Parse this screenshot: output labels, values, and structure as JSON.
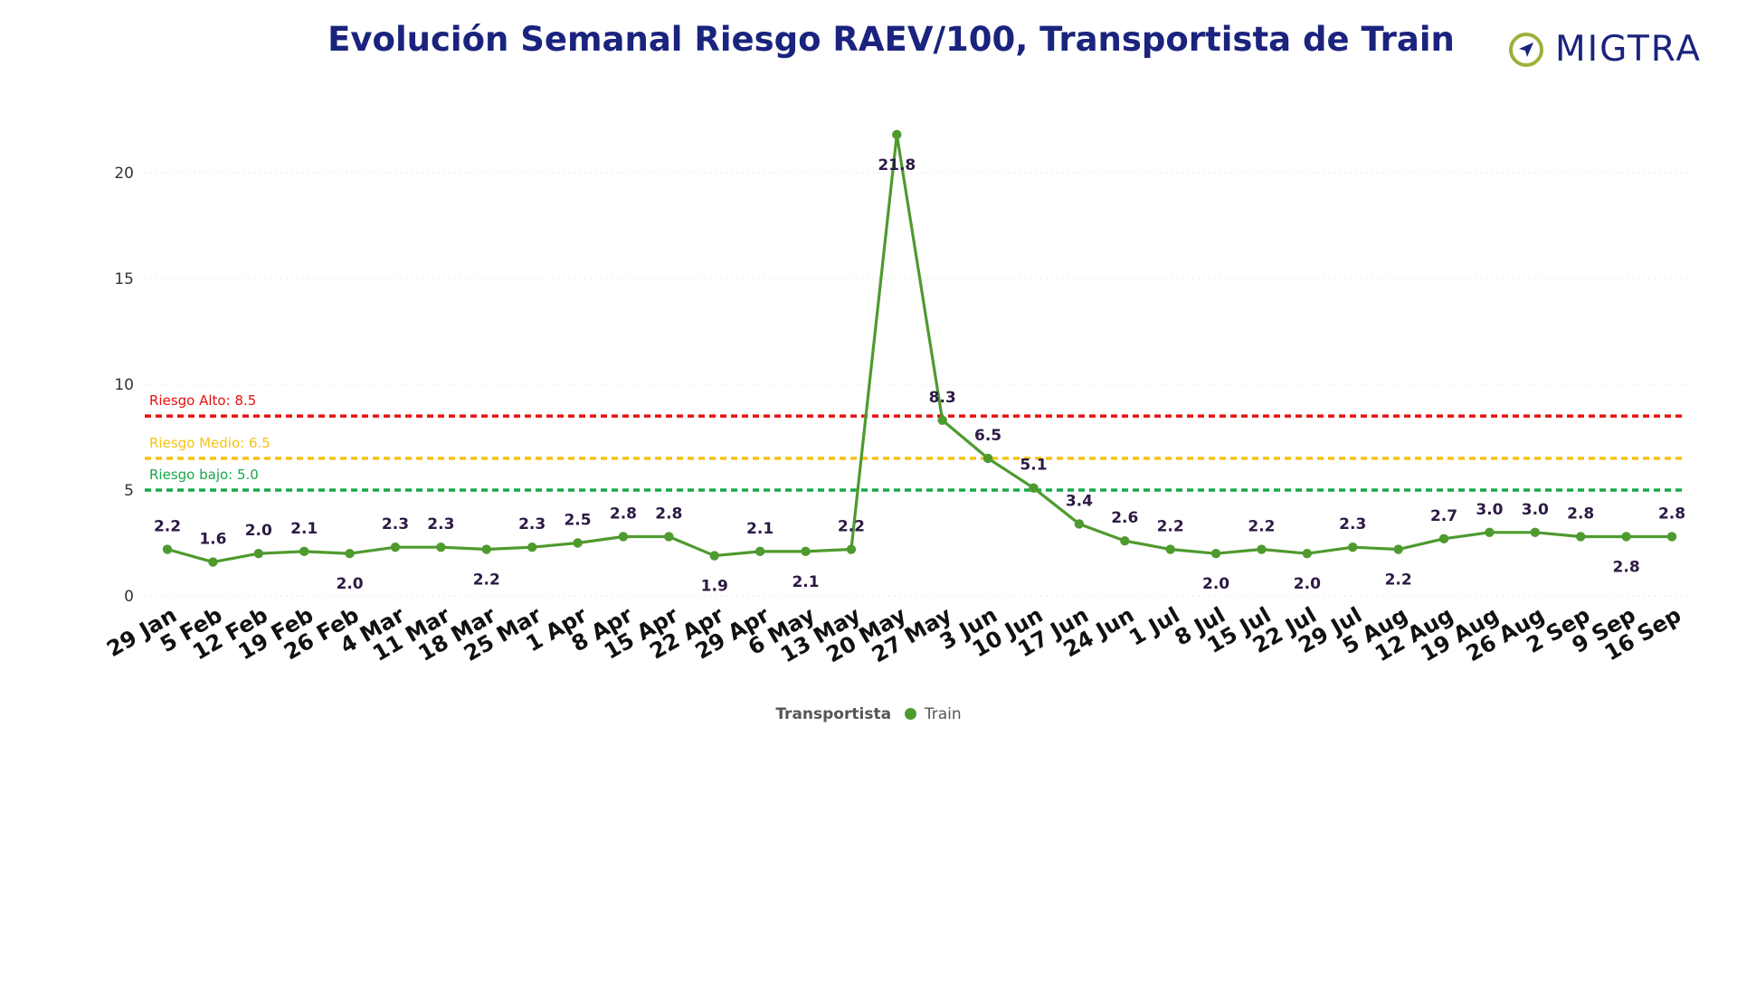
{
  "title": "Evolución Semanal Riesgo RAEV/100, Transportista de Train",
  "logo": {
    "text": "MIGTRA",
    "icon": "compass-circle-icon"
  },
  "legend": {
    "title": "Transportista",
    "series_name": "Train"
  },
  "colors": {
    "title": "#1a237e",
    "series": "#4e9a2f",
    "data_labels": "#2d1a45",
    "alto": "#e8100f",
    "medio": "#f5c211",
    "bajo": "#17a849"
  },
  "chart_data": {
    "type": "line",
    "title": "Evolución Semanal Riesgo RAEV/100, Transportista de Train",
    "xlabel": "",
    "ylabel": "",
    "ylim": [
      0,
      22
    ],
    "yticks": [
      0,
      5,
      10,
      15,
      20
    ],
    "grid": true,
    "legend_position": "bottom",
    "categories": [
      "29 Jan",
      "5 Feb",
      "12 Feb",
      "19 Feb",
      "26 Feb",
      "4 Mar",
      "11 Mar",
      "18 Mar",
      "25 Mar",
      "1 Apr",
      "8 Apr",
      "15 Apr",
      "22 Apr",
      "29 Apr",
      "6 May",
      "13 May",
      "20 May",
      "27 May",
      "3 Jun",
      "10 Jun",
      "17 Jun",
      "24 Jun",
      "1 Jul",
      "8 Jul",
      "15 Jul",
      "22 Jul",
      "29 Jul",
      "5 Aug",
      "12 Aug",
      "19 Aug",
      "26 Aug",
      "2 Sep",
      "9 Sep",
      "16 Sep"
    ],
    "series": [
      {
        "name": "Train",
        "values": [
          2.2,
          1.6,
          2.0,
          2.1,
          2.0,
          2.3,
          2.3,
          2.2,
          2.3,
          2.5,
          2.8,
          2.8,
          1.9,
          2.1,
          2.1,
          2.2,
          21.8,
          8.3,
          6.5,
          5.1,
          3.4,
          2.6,
          2.2,
          2.0,
          2.2,
          2.0,
          2.3,
          2.2,
          2.7,
          3.0,
          3.0,
          2.8,
          2.8,
          2.8
        ],
        "labels": [
          "2.2",
          "1.6",
          "2.0",
          "2.1",
          "2.0",
          "2.3",
          "2.3",
          "2.2",
          "2.3",
          "2.5",
          "2.8",
          "2.8",
          "1.9",
          "2.1",
          "2.1",
          "2.2",
          "21.8",
          "8.3",
          "6.5",
          "5.1",
          "3.4",
          "2.6",
          "2.2",
          "2.0",
          "2.2",
          "2.0",
          "2.3",
          "2.2",
          "2.7",
          "3.0",
          "3.0",
          "2.8",
          "2.8",
          "2.8"
        ],
        "label_positions": [
          "above",
          "above",
          "above",
          "above",
          "below",
          "above",
          "above",
          "below",
          "above",
          "above",
          "above",
          "above",
          "below",
          "above",
          "below",
          "above",
          "below",
          "above",
          "above",
          "above",
          "above",
          "above",
          "above",
          "below",
          "above",
          "below",
          "above",
          "below",
          "above",
          "above",
          "above",
          "above",
          "below",
          "above"
        ]
      }
    ],
    "reference_lines": [
      {
        "label": "Riesgo Alto: 8.5",
        "value": 8.5,
        "color": "#e8100f"
      },
      {
        "label": "Riesgo Medio: 6.5",
        "value": 6.5,
        "color": "#f5c211"
      },
      {
        "label": "Riesgo bajo: 5.0",
        "value": 5.0,
        "color": "#17a849"
      }
    ]
  }
}
